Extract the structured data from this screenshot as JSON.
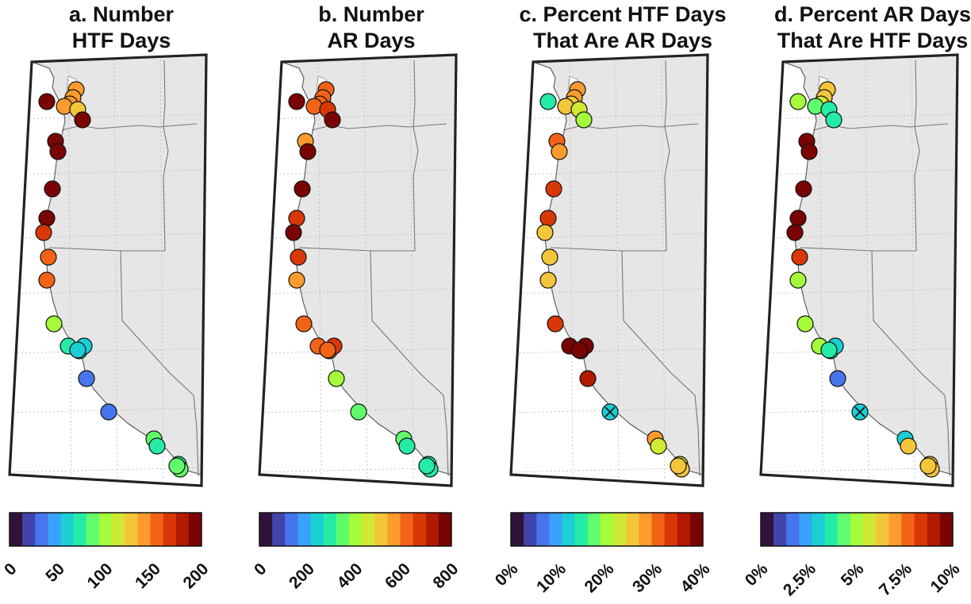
{
  "colors": [
    "#30123b",
    "#4145ab",
    "#4675ed",
    "#39a2fc",
    "#1bcfd4",
    "#24eca6",
    "#61fc6c",
    "#a4fc3b",
    "#d1e834",
    "#f3c63a",
    "#fe9b2d",
    "#f36315",
    "#d93806",
    "#b11901",
    "#7a0403"
  ],
  "site_levels_HTF": [
    15,
    10,
    10,
    10,
    10,
    9,
    15,
    15,
    15,
    15,
    15,
    12,
    11,
    11,
    7,
    5,
    4,
    4,
    4,
    2,
    2,
    6,
    5,
    5,
    6,
    6
  ],
  "site_levels_AR": [
    15,
    11,
    11,
    11,
    11,
    12,
    15,
    10,
    15,
    14,
    12,
    14,
    12,
    10,
    11,
    11,
    11,
    12,
    11,
    7,
    6,
    6,
    5,
    5,
    5,
    5
  ],
  "site_levels_pctHTF": [
    5,
    10,
    10,
    9,
    9,
    8,
    7,
    11,
    10,
    12,
    12,
    9,
    9,
    9,
    12,
    15,
    15,
    15,
    14,
    13,
    4,
    10,
    8,
    8,
    9,
    9
  ],
  "site_levels_pctAR": [
    7,
    9,
    9,
    8,
    6,
    5,
    5,
    15,
    15,
    15,
    15,
    15,
    12,
    7,
    7,
    7,
    5,
    4,
    5,
    2,
    4,
    4,
    9,
    9,
    9,
    9
  ],
  "charts": [
    {
      "title_lines": [
        "a. Number",
        "HTF Days"
      ],
      "levels_key": "site_levels_HTF",
      "cross_site": -1,
      "ticks": [
        "0",
        "50",
        "100",
        "150",
        "200"
      ]
    },
    {
      "title_lines": [
        "b. Number",
        "AR Days"
      ],
      "levels_key": "site_levels_AR",
      "cross_site": -1,
      "ticks": [
        "0",
        "200",
        "400",
        "600",
        "800"
      ]
    },
    {
      "title_lines": [
        "c. Percent HTF Days",
        "That Are AR Days"
      ],
      "levels_key": "site_levels_pctHTF",
      "cross_site": 20,
      "ticks": [
        "0%",
        "10%",
        "20%",
        "30%",
        "40%"
      ]
    },
    {
      "title_lines": [
        "d. Percent AR Days",
        "That Are HTF Days"
      ],
      "levels_key": "site_levels_pctAR",
      "cross_site": 20,
      "ticks": [
        "0%",
        "2.5%",
        "5%",
        "7.5%",
        "10%"
      ]
    }
  ]
}
